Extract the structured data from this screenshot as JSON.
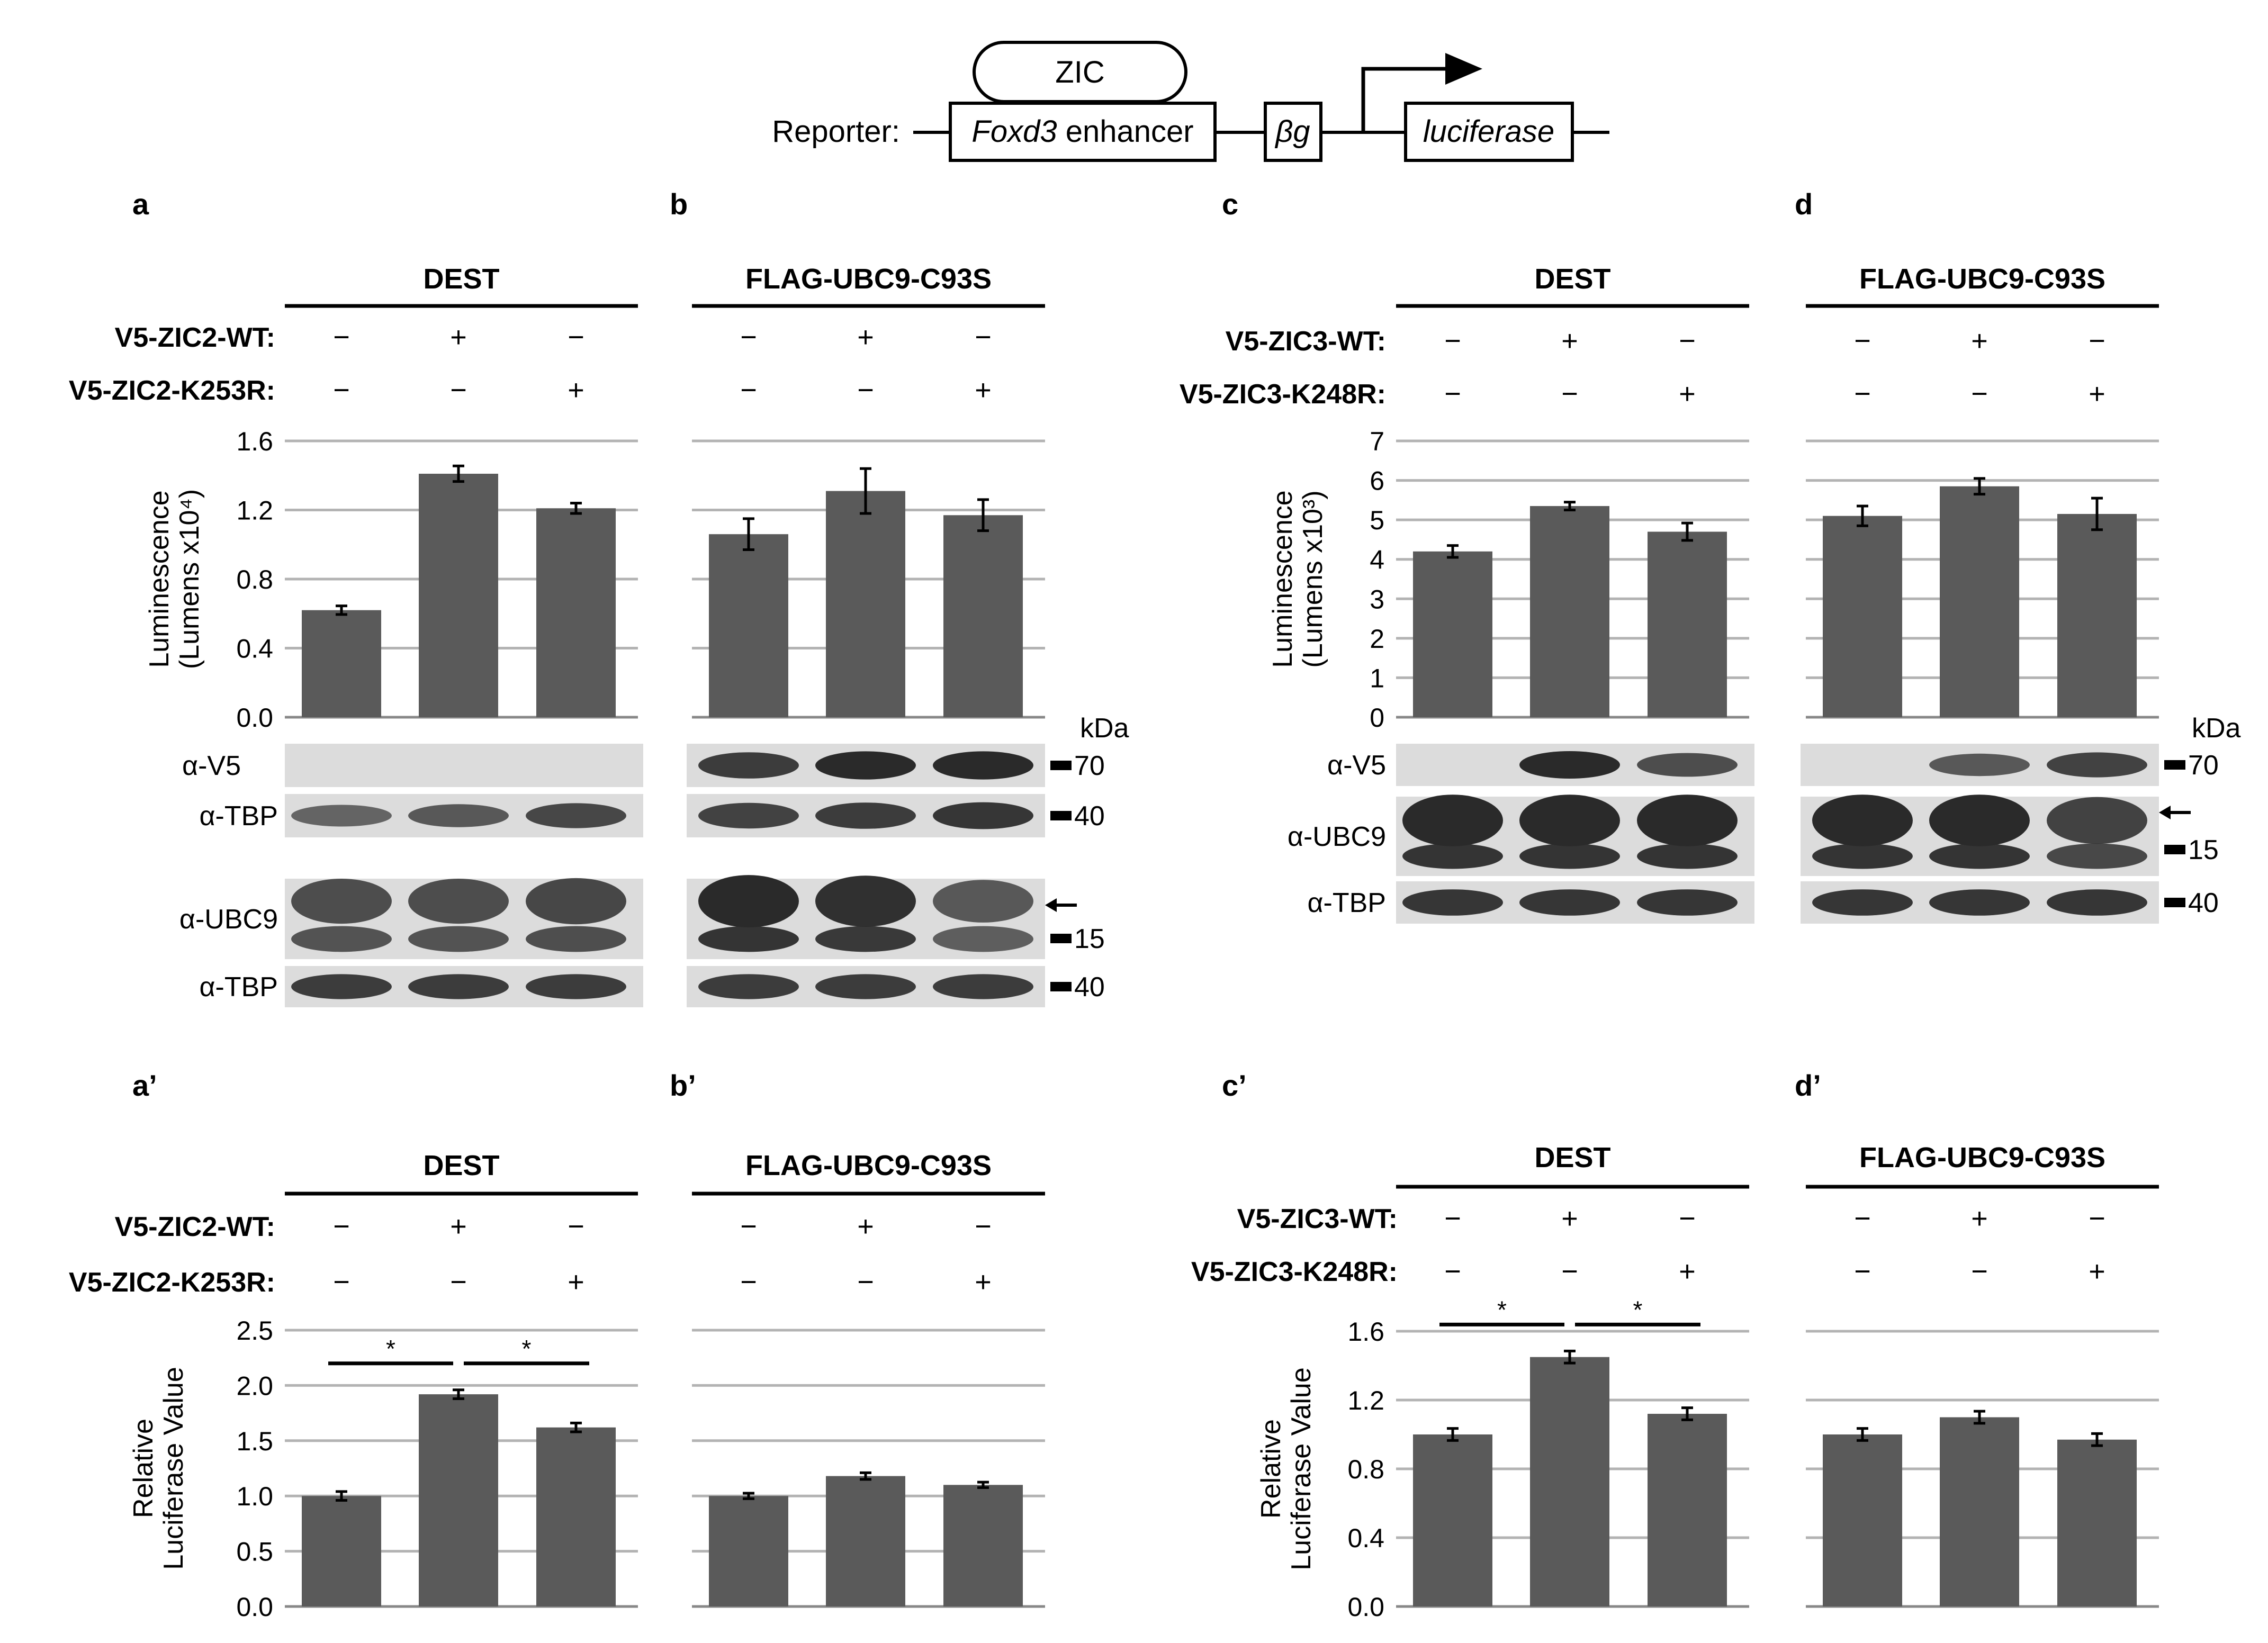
{
  "reporter": {
    "prefix": "Reporter:",
    "factor": "ZIC",
    "enhancer_italic": "Foxd3",
    "enhancer_rest": " enhancer",
    "promoter": "βg",
    "gene": "luciferase"
  },
  "units": {
    "kda": "kDa"
  },
  "panels_top": [
    {
      "id": "a",
      "label": "a",
      "condition": "DEST",
      "rows": [
        {
          "label": "V5-ZIC2-WT:",
          "signs": [
            "−",
            "+",
            "−"
          ]
        },
        {
          "label": "V5-ZIC2-K253R:",
          "signs": [
            "−",
            "−",
            "+"
          ]
        }
      ]
    },
    {
      "id": "b",
      "label": "b",
      "condition": "FLAG-UBC9-C93S",
      "rows": [
        {
          "label": "",
          "signs": [
            "−",
            "+",
            "−"
          ]
        },
        {
          "label": "",
          "signs": [
            "−",
            "−",
            "+"
          ]
        }
      ]
    },
    {
      "id": "c",
      "label": "c",
      "condition": "DEST",
      "rows": [
        {
          "label": "V5-ZIC3-WT:",
          "signs": [
            "−",
            "+",
            "−"
          ]
        },
        {
          "label": "V5-ZIC3-K248R:",
          "signs": [
            "−",
            "−",
            "+"
          ]
        }
      ]
    },
    {
      "id": "d",
      "label": "d",
      "condition": "FLAG-UBC9-C93S",
      "rows": [
        {
          "label": "",
          "signs": [
            "−",
            "+",
            "−"
          ]
        },
        {
          "label": "",
          "signs": [
            "−",
            "−",
            "+"
          ]
        }
      ]
    }
  ],
  "panels_bottom": [
    {
      "id": "a2",
      "label": "a’",
      "condition": "DEST",
      "rows": [
        {
          "label": "V5-ZIC2-WT:",
          "signs": [
            "−",
            "+",
            "−"
          ]
        },
        {
          "label": "V5-ZIC2-K253R:",
          "signs": [
            "−",
            "−",
            "+"
          ]
        }
      ]
    },
    {
      "id": "b2",
      "label": "b’",
      "condition": "FLAG-UBC9-C93S",
      "rows": [
        {
          "label": "",
          "signs": [
            "−",
            "+",
            "−"
          ]
        },
        {
          "label": "",
          "signs": [
            "−",
            "−",
            "+"
          ]
        }
      ]
    },
    {
      "id": "c2",
      "label": "c’",
      "condition": "DEST",
      "rows": [
        {
          "label": "V5-ZIC3-WT:",
          "signs": [
            "−",
            "+",
            "−"
          ]
        },
        {
          "label": "V5-ZIC3-K248R:",
          "signs": [
            "−",
            "−",
            "+"
          ]
        }
      ]
    },
    {
      "id": "d2",
      "label": "d’",
      "condition": "FLAG-UBC9-C93S",
      "rows": [
        {
          "label": "",
          "signs": [
            "−",
            "+",
            "−"
          ]
        },
        {
          "label": "",
          "signs": [
            "−",
            "−",
            "+"
          ]
        }
      ]
    }
  ],
  "blots": {
    "zic2": [
      {
        "antibody": "α-V5",
        "marker": "70",
        "arrow": false,
        "bands": [
          0,
          0,
          0,
          0.85,
          1,
          1
        ]
      },
      {
        "antibody": "α-TBP",
        "marker": "40",
        "arrow": false,
        "bands": [
          0.5,
          0.6,
          0.75,
          0.8,
          0.85,
          0.9
        ]
      },
      {
        "antibody": "α-UBC9",
        "marker": "15",
        "arrow": true,
        "bands": [
          0.7,
          0.7,
          0.75,
          1,
          0.95,
          0.6
        ]
      },
      {
        "antibody": "α-TBP",
        "marker": "40",
        "arrow": false,
        "bands": [
          0.85,
          0.85,
          0.85,
          0.85,
          0.85,
          0.85
        ]
      }
    ],
    "zic3": [
      {
        "antibody": "α-V5",
        "marker": "70",
        "arrow": false,
        "bands": [
          0,
          1,
          0.7,
          0,
          0.6,
          0.8
        ]
      },
      {
        "antibody": "α-UBC9",
        "marker": "15",
        "arrow": true,
        "bands": [
          1,
          1,
          1,
          1,
          1,
          0.8
        ]
      },
      {
        "antibody": "α-TBP",
        "marker": "40",
        "arrow": false,
        "bands": [
          0.9,
          0.9,
          0.9,
          0.9,
          0.9,
          0.9
        ]
      }
    ]
  },
  "chart_data": [
    {
      "type": "bar",
      "panel": "a",
      "ylabel": [
        "Luminescence",
        "(Lumens x10⁴)"
      ],
      "ylim": [
        0,
        1.6
      ],
      "ticks": [
        "0.0",
        "0.4",
        "0.8",
        "1.2",
        "1.6"
      ],
      "grid": true,
      "values": [
        0.62,
        1.41,
        1.21
      ],
      "errors": [
        0.025,
        0.045,
        0.03
      ]
    },
    {
      "type": "bar",
      "panel": "b",
      "ylim": [
        0,
        1.6
      ],
      "grid": true,
      "values": [
        1.06,
        1.31,
        1.17
      ],
      "errors": [
        0.09,
        0.13,
        0.09
      ]
    },
    {
      "type": "bar",
      "panel": "c",
      "ylabel": [
        "Luminescence",
        "(Lumens x10³)"
      ],
      "ylim": [
        0,
        7
      ],
      "ticks": [
        "0",
        "1",
        "2",
        "3",
        "4",
        "5",
        "6",
        "7"
      ],
      "grid": true,
      "values": [
        4.2,
        5.35,
        4.7
      ],
      "errors": [
        0.15,
        0.1,
        0.22
      ]
    },
    {
      "type": "bar",
      "panel": "d",
      "ylim": [
        0,
        7
      ],
      "grid": true,
      "values": [
        5.1,
        5.85,
        5.15
      ],
      "errors": [
        0.25,
        0.2,
        0.4
      ]
    },
    {
      "type": "bar",
      "panel": "a’",
      "ylabel": [
        "Relative",
        "Luciferase Value"
      ],
      "ylim": [
        0,
        2.5
      ],
      "ticks": [
        "0.0",
        "0.5",
        "1.0",
        "1.5",
        "2.0",
        "2.5"
      ],
      "grid": true,
      "values": [
        1.0,
        1.92,
        1.62
      ],
      "errors": [
        0.04,
        0.04,
        0.04
      ],
      "significance": [
        {
          "from": 0,
          "to": 1,
          "label": "*"
        },
        {
          "from": 1,
          "to": 2,
          "label": "*"
        }
      ]
    },
    {
      "type": "bar",
      "panel": "b’",
      "ylim": [
        0,
        2.5
      ],
      "grid": true,
      "values": [
        1.0,
        1.18,
        1.1
      ],
      "errors": [
        0.025,
        0.03,
        0.025
      ]
    },
    {
      "type": "bar",
      "panel": "c’",
      "ylabel": [
        "Relative",
        "Luciferase Value"
      ],
      "ylim": [
        0,
        1.6
      ],
      "ticks": [
        "0.0",
        "0.4",
        "0.8",
        "1.2",
        "1.6"
      ],
      "grid": true,
      "values": [
        1.0,
        1.45,
        1.12
      ],
      "errors": [
        0.035,
        0.035,
        0.035
      ],
      "significance": [
        {
          "from": 0,
          "to": 1,
          "label": "*"
        },
        {
          "from": 1,
          "to": 2,
          "label": "*"
        }
      ]
    },
    {
      "type": "bar",
      "panel": "d’",
      "ylim": [
        0,
        1.6
      ],
      "grid": true,
      "values": [
        1.0,
        1.1,
        0.97
      ],
      "errors": [
        0.035,
        0.035,
        0.035
      ]
    }
  ],
  "colors": {
    "bar": "#5a5a5a",
    "grid": "#b3b3b3",
    "axis": "#000000",
    "blot_bg": "#dcdcdc",
    "band": "#2a2a2a"
  }
}
